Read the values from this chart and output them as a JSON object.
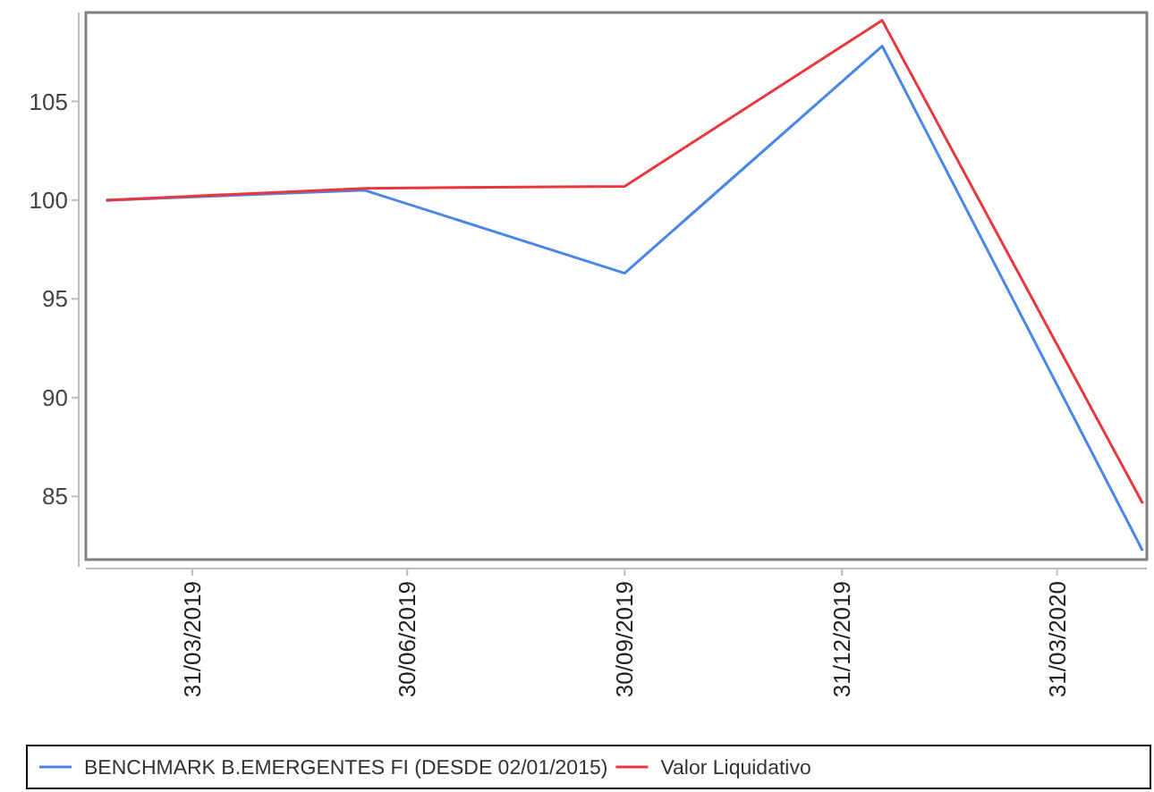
{
  "chart_data": {
    "type": "line",
    "x": [
      "2019-02-23",
      "2019-06-12",
      "2019-09-30",
      "2020-01-17",
      "2020-05-06"
    ],
    "series": [
      {
        "name": "BENCHMARK B.EMERGENTES FI (DESDE 02/01/2015)",
        "color": "#4a86e8",
        "values": [
          100,
          100.5,
          96.3,
          107.8,
          82.3
        ]
      },
      {
        "name": "Valor Liquidativo",
        "color": "#e8383d",
        "values": [
          100,
          100.6,
          100.7,
          109.1,
          84.7
        ]
      }
    ],
    "xlim": [
      "2019-02-14",
      "2020-05-08"
    ],
    "xticks": [
      {
        "value": "2019-03-31",
        "label": "31/03/2019"
      },
      {
        "value": "2019-06-30",
        "label": "30/06/2019"
      },
      {
        "value": "2019-09-30",
        "label": "30/09/2019"
      },
      {
        "value": "2019-12-31",
        "label": "31/12/2019"
      },
      {
        "value": "2020-03-31",
        "label": "31/03/2020"
      }
    ],
    "ylim": [
      81.8,
      109.5
    ],
    "yticks": [
      85,
      90,
      95,
      100,
      105
    ],
    "grid": false,
    "legend": "bottom",
    "marker": "none",
    "line_style": "solid"
  }
}
